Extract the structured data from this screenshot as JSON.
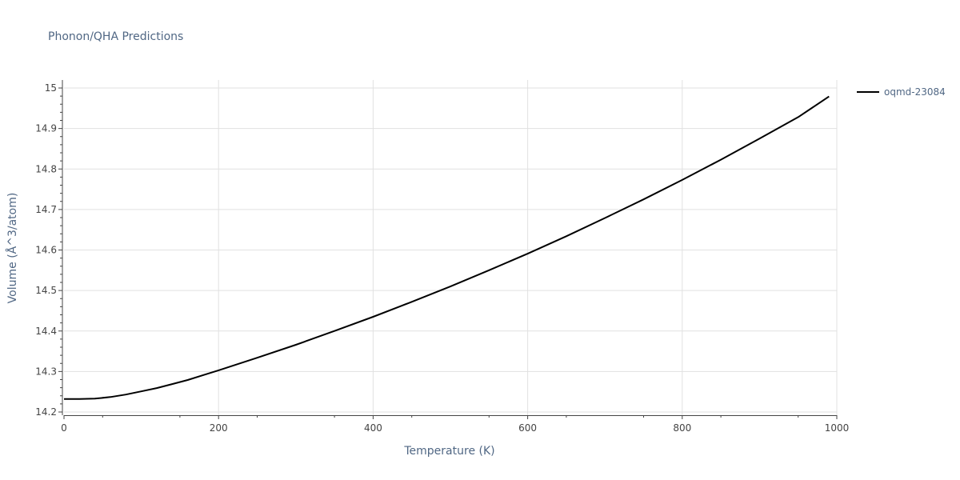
{
  "chart_data": {
    "type": "line",
    "title": "Phonon/QHA Predictions",
    "xlabel": "Temperature (K)",
    "ylabel": "Volume (Å^3/atom)",
    "xlim": [
      0,
      1000
    ],
    "ylim": [
      14.2,
      15.0
    ],
    "x_ticks": [
      0,
      200,
      400,
      600,
      800,
      1000
    ],
    "y_ticks": [
      14.2,
      14.3,
      14.4,
      14.5,
      14.6,
      14.7,
      14.8,
      14.9,
      15
    ],
    "x_tick_labels": [
      "0",
      "200",
      "400",
      "600",
      "800",
      "1000"
    ],
    "y_tick_labels": [
      "14.2",
      "14.3",
      "14.4",
      "14.5",
      "14.6",
      "14.7",
      "14.8",
      "14.9",
      "15"
    ],
    "grid": true,
    "legend_position": "top-right",
    "series": [
      {
        "name": "oqmd-23084",
        "color": "#000000",
        "x": [
          0,
          20,
          40,
          60,
          80,
          100,
          120,
          140,
          160,
          180,
          200,
          250,
          300,
          350,
          400,
          450,
          500,
          550,
          600,
          650,
          700,
          750,
          800,
          850,
          900,
          950,
          990
        ],
        "y": [
          14.232,
          14.232,
          14.233,
          14.237,
          14.243,
          14.251,
          14.259,
          14.269,
          14.279,
          14.291,
          14.303,
          14.334,
          14.366,
          14.4,
          14.435,
          14.472,
          14.51,
          14.55,
          14.591,
          14.634,
          14.679,
          14.725,
          14.773,
          14.823,
          14.875,
          14.928,
          14.979
        ]
      }
    ]
  }
}
